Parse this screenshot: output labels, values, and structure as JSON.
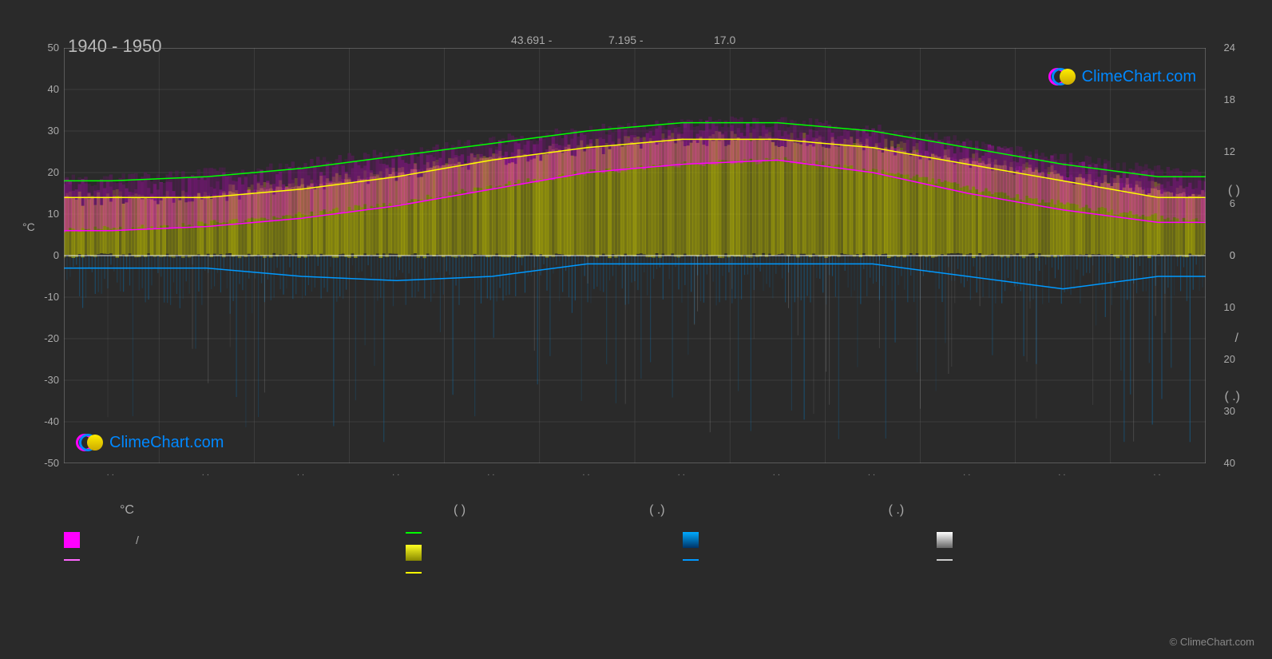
{
  "title_period": "1940 - 1950",
  "header": {
    "lat": "43.691 -",
    "lon": "7.195 -",
    "elev": "17.0"
  },
  "left_axis": {
    "label": "°C",
    "ticks": [
      50,
      40,
      30,
      20,
      10,
      0,
      -10,
      -20,
      -30,
      -40,
      -50
    ],
    "min": -50,
    "max": 50
  },
  "right_axis_top": {
    "ticks": [
      24,
      18,
      12,
      6,
      0
    ],
    "min": 0,
    "max": 24,
    "suffix": "(   )"
  },
  "right_axis_bot": {
    "ticks": [
      0,
      10,
      20,
      30,
      40
    ],
    "min": 0,
    "max": 40,
    "suffix_slash": "/",
    "suffix_paren": "(  .)"
  },
  "months": 12,
  "lines": {
    "green": {
      "color": "#00ff00",
      "width": 1.5,
      "values": [
        18,
        19,
        21,
        24,
        27,
        30,
        32,
        32,
        30,
        26,
        22,
        19
      ]
    },
    "yellow": {
      "color": "#ffff00",
      "width": 1.5,
      "values": [
        14,
        14,
        16,
        19,
        23,
        26,
        28,
        28,
        26,
        22,
        18,
        14
      ]
    },
    "magenta": {
      "color": "#ff00ff",
      "width": 1.5,
      "values": [
        6,
        7,
        9,
        12,
        16,
        20,
        22,
        23,
        20,
        15,
        11,
        8
      ]
    },
    "blue": {
      "color": "#0099ff",
      "width": 1.5,
      "values": [
        -3,
        -3,
        -5,
        -6,
        -5,
        -2,
        -2,
        -2,
        -2,
        -5,
        -8,
        -5
      ]
    }
  },
  "yellow_fill": {
    "color": "#bfbf00",
    "opacity": 0.6
  },
  "magenta_fill": {
    "color": "#ff00ff",
    "opacity": 0.35
  },
  "blue_fill": {
    "color": "#0088dd",
    "opacity": 0.3
  },
  "white_fill": {
    "color": "#cccccc",
    "opacity": 0.15
  },
  "background_color": "#2a2a2a",
  "grid_color": "#666666",
  "zero_line_color": "#ffffff",
  "watermark_text": "ClimeChart.com",
  "copyright": "© ClimeChart.com",
  "legend_headers": [
    "°C",
    "(         )",
    "(   .)",
    "(   .)"
  ],
  "legend": {
    "col1": [
      {
        "type": "box",
        "color": "#ff00ff",
        "label": "/"
      },
      {
        "type": "line",
        "color": "#ff66ff",
        "label": ""
      }
    ],
    "col2": [
      {
        "type": "line",
        "color": "#00ff00",
        "label": ""
      },
      {
        "type": "box_grad",
        "c1": "#ffff22",
        "c2": "#888800",
        "label": ""
      },
      {
        "type": "line",
        "color": "#ffff00",
        "label": ""
      }
    ],
    "col3": [
      {
        "type": "box_grad",
        "c1": "#00aaff",
        "c2": "#003366",
        "label": ""
      },
      {
        "type": "line",
        "color": "#0099ff",
        "label": ""
      }
    ],
    "col4": [
      {
        "type": "box_grad",
        "c1": "#ffffff",
        "c2": "#666666",
        "label": ""
      },
      {
        "type": "line",
        "color": "#cccccc",
        "label": ""
      }
    ]
  }
}
